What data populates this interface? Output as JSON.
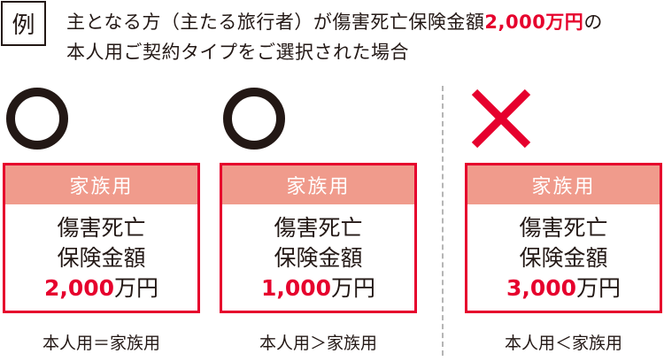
{
  "example_label": "例",
  "intro": {
    "line1_pre": "主となる方（主たる旅行者）が傷害死亡保険金額",
    "line1_amount": "2,000万円",
    "line1_post": "の",
    "line2": "本人用ご契約タイプをご選択された場合"
  },
  "colors": {
    "accent": "#e6002d",
    "header": "#f09b8c",
    "text": "#231815"
  },
  "cases": [
    {
      "mark": "circle-icon",
      "header": "家族用",
      "line1": "傷害死亡",
      "line2": "保険金額",
      "amount": "2,000",
      "unit": "万円",
      "caption": "本人用＝家族用"
    },
    {
      "mark": "circle-icon",
      "header": "家族用",
      "line1": "傷害死亡",
      "line2": "保険金額",
      "amount": "1,000",
      "unit": "万円",
      "caption": "本人用＞家族用"
    },
    {
      "mark": "cross-icon",
      "header": "家族用",
      "line1": "傷害死亡",
      "line2": "保険金額",
      "amount": "3,000",
      "unit": "万円",
      "caption": "本人用＜家族用"
    }
  ]
}
